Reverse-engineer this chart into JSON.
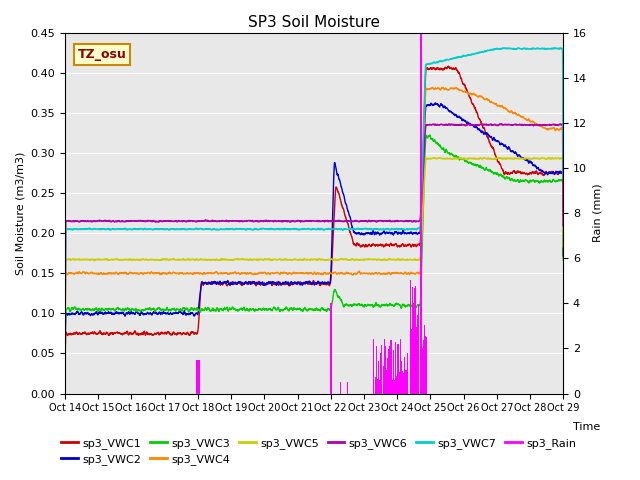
{
  "title": "SP3 Soil Moisture",
  "ylabel_left": "Soil Moisture (m3/m3)",
  "ylabel_right": "Rain (mm)",
  "xlabel": "Time",
  "tz_label": "TZ_osu",
  "ylim_left": [
    0.0,
    0.45
  ],
  "ylim_right": [
    0,
    16
  ],
  "yticks_left": [
    0.0,
    0.05,
    0.1,
    0.15,
    0.2,
    0.25,
    0.3,
    0.35,
    0.4,
    0.45
  ],
  "yticks_right": [
    0,
    2,
    4,
    6,
    8,
    10,
    12,
    14,
    16
  ],
  "xtick_labels": [
    "Oct 14",
    "Oct 15",
    "Oct 16",
    "Oct 17",
    "Oct 18",
    "Oct 19",
    "Oct 20",
    "Oct 21",
    "Oct 22",
    "Oct 23",
    "Oct 24",
    "Oct 25",
    "Oct 26",
    "Oct 27",
    "Oct 28",
    "Oct 29"
  ],
  "colors": {
    "VWC1": "#cc0000",
    "VWC2": "#0000cc",
    "VWC3": "#00cc00",
    "VWC4": "#ff8800",
    "VWC5": "#cccc00",
    "VWC6": "#aa00aa",
    "VWC7": "#00cccc",
    "Rain": "#ff00ff"
  },
  "bg_color": "#e8e8e8",
  "grid_color": "#ffffff",
  "figsize": [
    6.4,
    4.8
  ],
  "dpi": 100
}
